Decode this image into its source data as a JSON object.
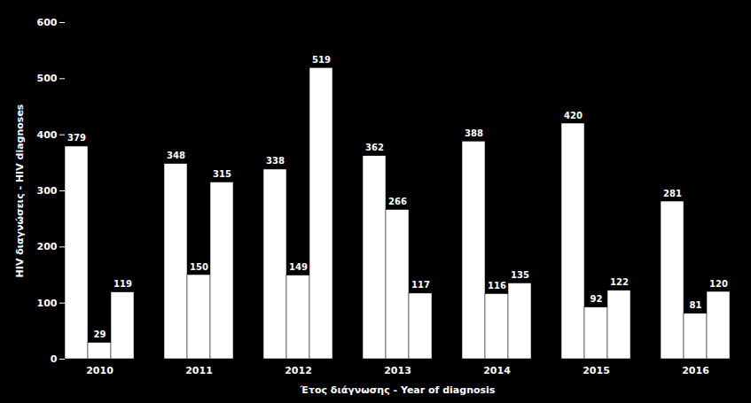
{
  "chart_data": {
    "type": "bar",
    "categories": [
      "2010",
      "2011",
      "2012",
      "2013",
      "2014",
      "2015",
      "2016"
    ],
    "series": [
      {
        "color": "#ffffff",
        "values": [
          379,
          348,
          338,
          362,
          388,
          420,
          281
        ]
      },
      {
        "color": "#ffffff",
        "values": [
          29,
          150,
          149,
          266,
          116,
          92,
          81
        ]
      },
      {
        "color": "#ffffff",
        "values": [
          119,
          315,
          519,
          117,
          135,
          122,
          120
        ]
      }
    ],
    "xlabel": "Έτος διάγνωσης - Year of diagnosis",
    "ylabel": "HIV διαγνώσεις - HIV diagnoses",
    "ylim": [
      0,
      600
    ],
    "yticks": [
      0,
      100,
      200,
      300,
      400,
      500,
      600
    ],
    "data_labels": true,
    "grid": false
  }
}
